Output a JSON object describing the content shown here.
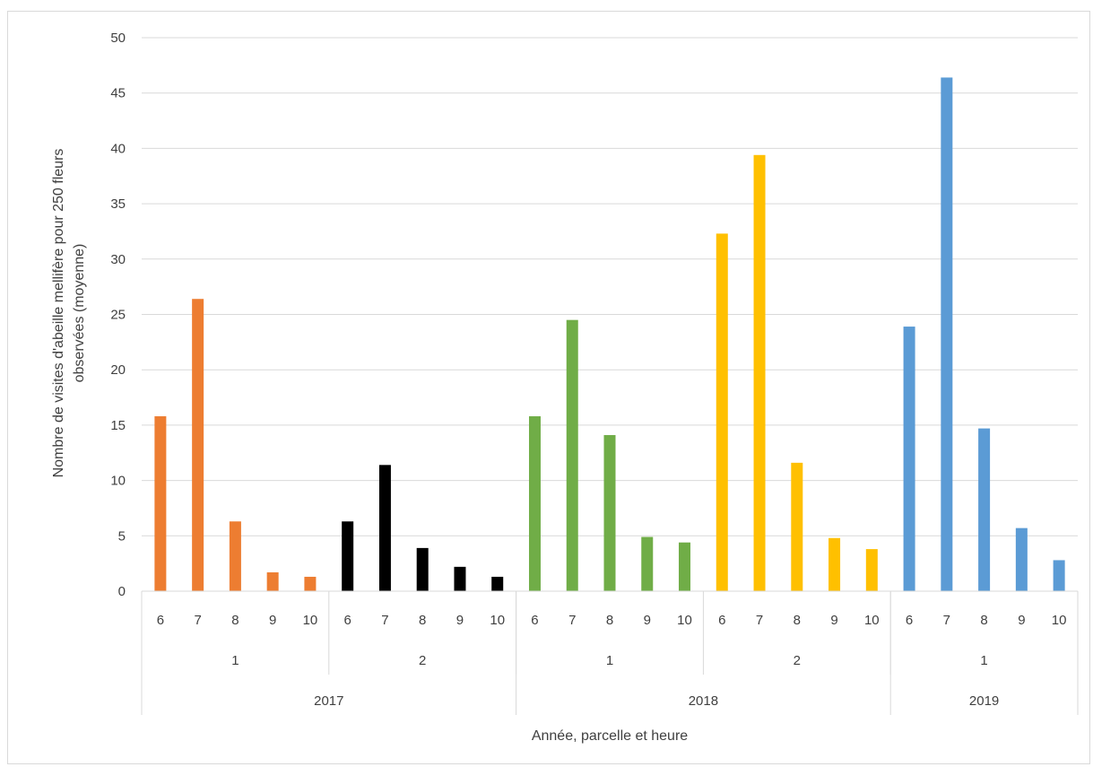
{
  "chart_data": {
    "type": "bar",
    "title": "",
    "xlabel": "Année, parcelle et heure",
    "ylabel_line1": "Nombre  de visites d'abeille mellifère pour 250 fleurs",
    "ylabel_line2": "observées (moyenne)",
    "ylim": [
      0,
      50
    ],
    "yticks": [
      "0",
      "5",
      "10",
      "15",
      "20",
      "25",
      "30",
      "35",
      "40",
      "45",
      "50"
    ],
    "grid": true,
    "legend": "none",
    "categories": [
      "6",
      "7",
      "8",
      "9",
      "10",
      "6",
      "7",
      "8",
      "9",
      "10",
      "6",
      "7",
      "8",
      "9",
      "10",
      "6",
      "7",
      "8",
      "9",
      "10",
      "6",
      "7",
      "8",
      "9",
      "10"
    ],
    "groups_level2": [
      "1",
      "2",
      "1",
      "2",
      "1"
    ],
    "groups_level1": [
      "2017",
      "2018",
      "2019"
    ],
    "colors": [
      "#ED7D31",
      "#ED7D31",
      "#ED7D31",
      "#ED7D31",
      "#ED7D31",
      "#000000",
      "#000000",
      "#000000",
      "#000000",
      "#000000",
      "#70AD47",
      "#70AD47",
      "#70AD47",
      "#70AD47",
      "#70AD47",
      "#FFC000",
      "#FFC000",
      "#FFC000",
      "#FFC000",
      "#FFC000",
      "#5B9BD5",
      "#5B9BD5",
      "#5B9BD5",
      "#5B9BD5",
      "#5B9BD5"
    ],
    "values": [
      15.8,
      26.4,
      6.3,
      1.7,
      1.3,
      6.3,
      11.4,
      3.9,
      2.2,
      1.3,
      15.8,
      24.5,
      14.1,
      4.9,
      4.4,
      32.3,
      39.4,
      11.6,
      4.8,
      3.8,
      23.9,
      46.4,
      14.7,
      5.7,
      2.8
    ]
  }
}
